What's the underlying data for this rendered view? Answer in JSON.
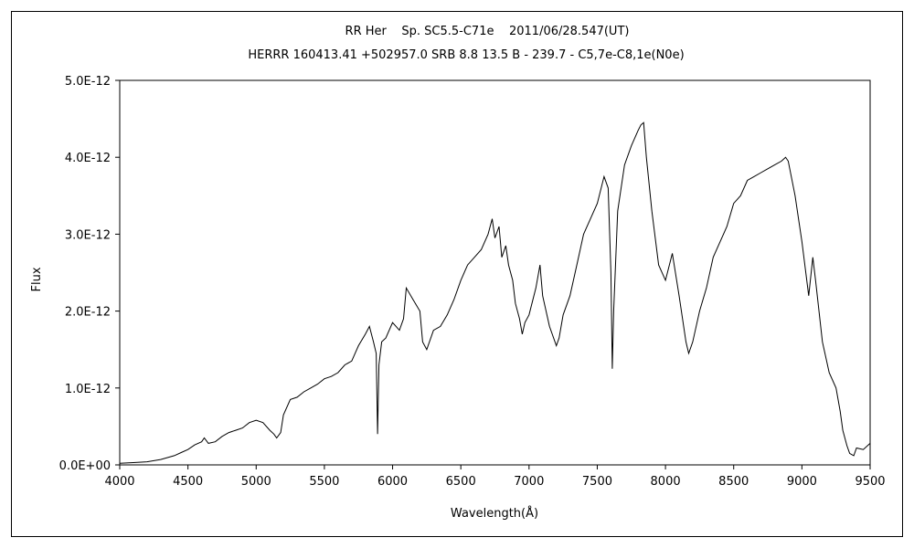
{
  "chart_data": {
    "type": "line",
    "title": "RR Her    Sp. SC5.5-C71e    2011/06/28.547(UT)",
    "subtitle": "HERRR 160413.41 +502957.0 SRB 8.8 13.5 B - 239.7 - C5,7e-C8,1e(N0e)",
    "xlabel": "Wavelength(Å)",
    "ylabel": "Flux",
    "xlim": [
      4000,
      9500
    ],
    "ylim": [
      0,
      5e-12
    ],
    "x_ticks": [
      "4000",
      "4500",
      "5000",
      "5500",
      "6000",
      "6500",
      "7000",
      "7500",
      "8000",
      "8500",
      "9000",
      "9500"
    ],
    "x_tick_values": [
      4000,
      4500,
      5000,
      5500,
      6000,
      6500,
      7000,
      7500,
      8000,
      8500,
      9000,
      9500
    ],
    "y_ticks": [
      "0.0E+00",
      "1.0E-12",
      "2.0E-12",
      "3.0E-12",
      "4.0E-12",
      "5.0E-12"
    ],
    "y_tick_values": [
      0,
      1e-12,
      2e-12,
      3e-12,
      4e-12,
      5e-12
    ],
    "grid": false,
    "legend": "none",
    "line_color": "#000000",
    "series": [
      {
        "x": [
          4000,
          4100,
          4200,
          4300,
          4400,
          4450,
          4500,
          4550,
          4600,
          4620,
          4650,
          4700,
          4750,
          4800,
          4850,
          4900,
          4950,
          5000,
          5050,
          5100,
          5130,
          5150,
          5180,
          5200,
          5250,
          5300,
          5350,
          5400,
          5450,
          5500,
          5550,
          5600,
          5650,
          5700,
          5750,
          5800,
          5830,
          5860,
          5880,
          5890,
          5900,
          5920,
          5950,
          6000,
          6050,
          6080,
          6100,
          6150,
          6200,
          6220,
          6250,
          6300,
          6350,
          6400,
          6450,
          6500,
          6550,
          6600,
          6650,
          6700,
          6730,
          6750,
          6780,
          6800,
          6830,
          6850,
          6880,
          6900,
          6930,
          6950,
          6970,
          7000,
          7050,
          7080,
          7100,
          7150,
          7200,
          7220,
          7250,
          7300,
          7350,
          7400,
          7450,
          7500,
          7550,
          7580,
          7600,
          7610,
          7620,
          7650,
          7700,
          7750,
          7800,
          7820,
          7840,
          7860,
          7900,
          7950,
          8000,
          8050,
          8100,
          8150,
          8170,
          8200,
          8250,
          8300,
          8350,
          8400,
          8450,
          8500,
          8550,
          8600,
          8650,
          8700,
          8750,
          8800,
          8850,
          8880,
          8900,
          8950,
          9000,
          9050,
          9080,
          9100,
          9150,
          9200,
          9250,
          9280,
          9300,
          9330,
          9350,
          9380,
          9400,
          9450,
          9500
        ],
        "y": [
          2e-14,
          3e-14,
          4e-14,
          7e-14,
          1.2e-13,
          1.6e-13,
          2e-13,
          2.6e-13,
          3e-13,
          3.5e-13,
          2.8e-13,
          3e-13,
          3.7e-13,
          4.2e-13,
          4.5e-13,
          4.8e-13,
          5.5e-13,
          5.8e-13,
          5.5e-13,
          4.5e-13,
          4e-13,
          3.5e-13,
          4.2e-13,
          6.5e-13,
          8.5e-13,
          8.8e-13,
          9.5e-13,
          1e-12,
          1.05e-12,
          1.12e-12,
          1.15e-12,
          1.2e-12,
          1.3e-12,
          1.35e-12,
          1.55e-12,
          1.7e-12,
          1.8e-12,
          1.6e-12,
          1.45e-12,
          4e-13,
          1.3e-12,
          1.6e-12,
          1.65e-12,
          1.85e-12,
          1.75e-12,
          1.9e-12,
          2.3e-12,
          2.15e-12,
          2e-12,
          1.6e-12,
          1.5e-12,
          1.75e-12,
          1.8e-12,
          1.95e-12,
          2.15e-12,
          2.4e-12,
          2.6e-12,
          2.7e-12,
          2.8e-12,
          3e-12,
          3.2e-12,
          2.95e-12,
          3.1e-12,
          2.7e-12,
          2.85e-12,
          2.6e-12,
          2.4e-12,
          2.1e-12,
          1.9e-12,
          1.7e-12,
          1.85e-12,
          1.95e-12,
          2.3e-12,
          2.6e-12,
          2.2e-12,
          1.8e-12,
          1.55e-12,
          1.65e-12,
          1.95e-12,
          2.2e-12,
          2.6e-12,
          3e-12,
          3.2e-12,
          3.4e-12,
          3.75e-12,
          3.6e-12,
          2.5e-12,
          1.25e-12,
          2e-12,
          3.3e-12,
          3.9e-12,
          4.15e-12,
          4.35e-12,
          4.42e-12,
          4.45e-12,
          4e-12,
          3.3e-12,
          2.6e-12,
          2.4e-12,
          2.75e-12,
          2.2e-12,
          1.6e-12,
          1.45e-12,
          1.6e-12,
          2e-12,
          2.3e-12,
          2.7e-12,
          2.9e-12,
          3.1e-12,
          3.4e-12,
          3.5e-12,
          3.7e-12,
          3.75e-12,
          3.8e-12,
          3.85e-12,
          3.9e-12,
          3.95e-12,
          4e-12,
          3.95e-12,
          3.5e-12,
          2.9e-12,
          2.2e-12,
          2.7e-12,
          2.4e-12,
          1.6e-12,
          1.2e-12,
          1e-12,
          7e-13,
          4.5e-13,
          2.5e-13,
          1.5e-13,
          1.2e-13,
          2.2e-13,
          2e-13,
          2.8e-13
        ]
      }
    ]
  }
}
